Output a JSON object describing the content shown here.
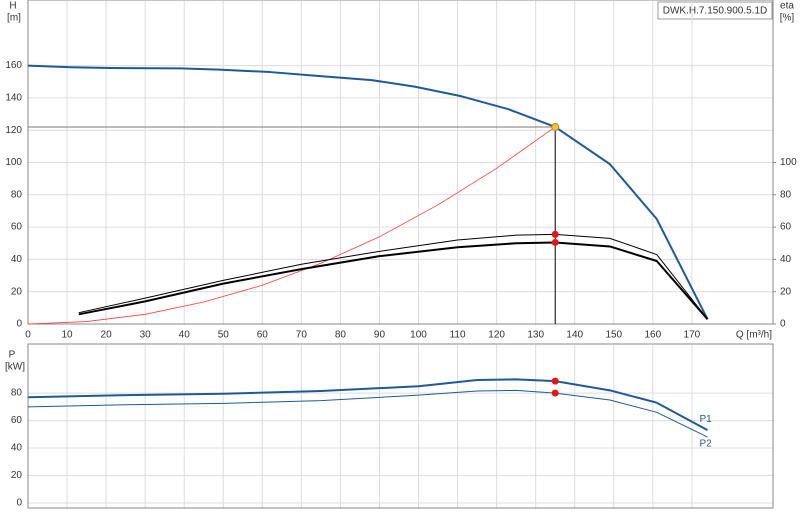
{
  "chart_data": [
    {
      "type": "line",
      "title": "DWK.H.7.150.900.5.1D",
      "y_label": "H",
      "y_unit": "[m]",
      "y2_label": "eta",
      "y2_unit": "[%]",
      "x_label": "Q [m³/h]",
      "xlim": [
        0,
        190
      ],
      "xticks": [
        0,
        10,
        20,
        30,
        40,
        50,
        60,
        70,
        80,
        90,
        100,
        110,
        120,
        130,
        140,
        150,
        160,
        170
      ],
      "ylim": [
        0,
        200
      ],
      "yticks": [
        0,
        20,
        40,
        60,
        80,
        100,
        120,
        140,
        160
      ],
      "y2lim": [
        0,
        200
      ],
      "y2ticks": [
        0,
        20,
        40,
        60,
        80,
        100
      ],
      "grid": true,
      "xtick_labels": true,
      "series": [
        {
          "color": "#1f5a96",
          "width": 2,
          "x": [
            0,
            11,
            21,
            39,
            49,
            62,
            72,
            88,
            99,
            111,
            123,
            135,
            149,
            161,
            174
          ],
          "values": [
            160,
            159,
            158.5,
            158.3,
            157.5,
            156,
            154,
            151,
            147,
            141,
            133,
            122,
            99,
            65,
            3
          ]
        },
        {
          "color": "#ff3b3b",
          "width": 0.8,
          "x": [
            0,
            15,
            30,
            45,
            60,
            75,
            90,
            105,
            120,
            135
          ],
          "values": [
            0,
            1.5,
            6,
            13.6,
            24,
            37.6,
            54,
            73.8,
            96.4,
            122
          ]
        },
        {
          "color": "#000000",
          "width": 1,
          "axis": "y2",
          "x": [
            13,
            30,
            50,
            70,
            90,
            110,
            125,
            135,
            149,
            161,
            174
          ],
          "values": [
            7,
            16,
            27,
            37,
            45,
            52,
            55,
            55.5,
            53,
            43,
            3
          ]
        },
        {
          "color": "#000000",
          "width": 2,
          "axis": "y2",
          "x": [
            13,
            30,
            50,
            70,
            90,
            110,
            125,
            135,
            149,
            161,
            174
          ],
          "values": [
            6,
            14,
            25,
            34,
            42,
            47.5,
            50,
            50.5,
            48,
            39,
            3
          ]
        }
      ],
      "points": [
        {
          "x": 135,
          "y": 122,
          "color": "#f5c03a",
          "guide": true
        },
        {
          "x": 135,
          "y": 55.5,
          "axis": "y2",
          "color": "#ee1111"
        },
        {
          "x": 135,
          "y": 50.5,
          "axis": "y2",
          "color": "#ee1111"
        }
      ]
    },
    {
      "type": "line",
      "y_label": "P",
      "y_unit": "[kW]",
      "xlim": [
        0,
        190
      ],
      "xticks": [
        0,
        10,
        20,
        30,
        40,
        50,
        60,
        70,
        80,
        90,
        100,
        110,
        120,
        130,
        140,
        150,
        160,
        170
      ],
      "ylim": [
        0,
        115
      ],
      "yticks": [
        0,
        20,
        40,
        60,
        80
      ],
      "grid": true,
      "xtick_labels": false,
      "series": [
        {
          "name": "P1",
          "color": "#1f5a96",
          "width": 2,
          "x": [
            0,
            25,
            50,
            75,
            100,
            115,
            125,
            135,
            149,
            161,
            174
          ],
          "values": [
            77,
            78.5,
            79.5,
            81.5,
            85,
            89.5,
            90,
            88.7,
            82,
            73,
            53
          ]
        },
        {
          "name": "P2",
          "color": "#1f5a96",
          "width": 1,
          "x": [
            0,
            25,
            50,
            75,
            100,
            115,
            125,
            135,
            149,
            161,
            174
          ],
          "values": [
            70,
            71.5,
            72.5,
            74.5,
            78.5,
            81.5,
            82,
            80,
            75,
            66,
            48
          ]
        }
      ],
      "points": [
        {
          "x": 135,
          "y": 88.7,
          "color": "#ee1111"
        },
        {
          "x": 135,
          "y": 80,
          "color": "#ee1111"
        }
      ]
    }
  ]
}
